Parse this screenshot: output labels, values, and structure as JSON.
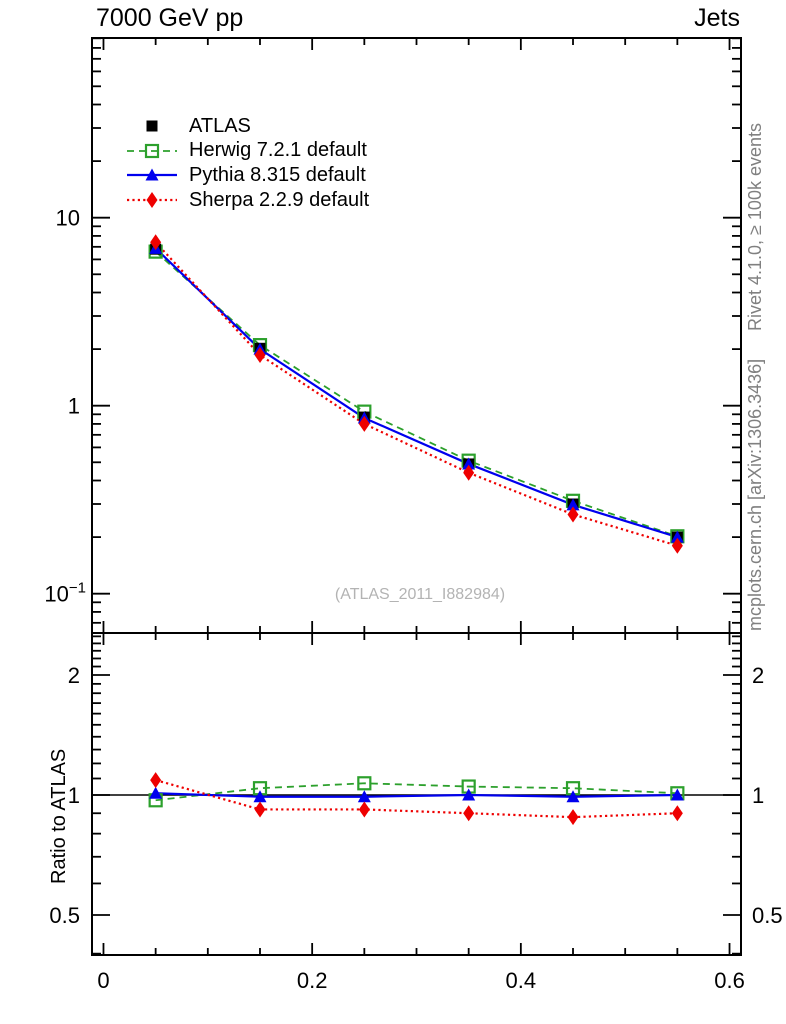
{
  "header": {
    "title_left": "7000 GeV pp",
    "title_right": "Jets"
  },
  "side_labels": {
    "rivet": "Rivet 4.1.0, ≥ 100k events",
    "mcplots": "mcplots.cern.ch [arXiv:1306.3436]"
  },
  "watermark": "(ATLAS_2011_I882984)",
  "chart_data": {
    "type": "line",
    "title": "7000 GeV pp",
    "subtitle_right": "Jets",
    "panels": [
      "spectrum",
      "ratio"
    ],
    "ratio_ylabel": "Ratio to ATLAS",
    "legend_position": "top-left-inside",
    "x": [
      0.05,
      0.15,
      0.25,
      0.35,
      0.45,
      0.55
    ],
    "series": [
      {
        "name": "ATLAS",
        "color": "#000000",
        "marker": "square-filled",
        "line": "none",
        "values": [
          6.8,
          2.02,
          0.87,
          0.49,
          0.3,
          0.2
        ],
        "ratio": [
          1,
          1,
          1,
          1,
          1,
          1
        ]
      },
      {
        "name": "Herwig 7.2.1 default",
        "color": "#2ca02c",
        "marker": "square-open",
        "line": "dashed",
        "values": [
          6.6,
          2.1,
          0.93,
          0.51,
          0.312,
          0.202
        ],
        "ratio": [
          0.97,
          1.04,
          1.07,
          1.05,
          1.04,
          1.01
        ]
      },
      {
        "name": "Pythia 8.315 default",
        "color": "#0000ee",
        "marker": "triangle-filled",
        "line": "solid",
        "values": [
          6.87,
          2.0,
          0.86,
          0.49,
          0.297,
          0.2
        ],
        "ratio": [
          1.01,
          0.99,
          0.99,
          1.0,
          0.99,
          1.0
        ]
      },
      {
        "name": "Sherpa 2.2.9 default",
        "color": "#ee0000",
        "marker": "diamond-filled",
        "line": "dotted",
        "values": [
          7.4,
          1.86,
          0.8,
          0.44,
          0.264,
          0.18
        ],
        "ratio": [
          1.09,
          0.92,
          0.92,
          0.9,
          0.88,
          0.9
        ]
      }
    ],
    "x_axis": {
      "range": [
        -0.011,
        0.611
      ],
      "major_ticks": [
        0,
        0.2,
        0.4,
        0.6
      ],
      "major_labels": [
        "0",
        "0.2",
        "0.4",
        "0.6"
      ],
      "minor_step": 0.05
    },
    "y_axis_main": {
      "scale": "log",
      "range": [
        0.062,
        90
      ],
      "major_ticks": [
        10,
        1,
        0.1
      ],
      "major_labels": [
        "10",
        "1",
        "10^-1"
      ]
    },
    "y_axis_ratio": {
      "scale": "log",
      "range": [
        0.4,
        2.55
      ],
      "major_ticks": [
        2,
        1,
        0.5
      ],
      "major_labels": [
        "2",
        "1",
        "0.5"
      ],
      "minor_ticks": [
        0.4,
        0.6,
        0.7,
        0.8,
        0.9,
        1.1,
        1.2,
        1.3,
        1.4,
        1.5,
        1.6,
        1.7,
        1.8,
        1.9,
        2.1,
        2.2,
        2.3,
        2.4,
        2.5
      ],
      "unity_line": true
    }
  }
}
